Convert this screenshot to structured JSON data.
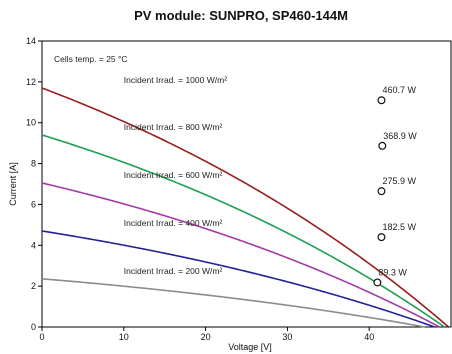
{
  "chart_data": {
    "type": "line",
    "title": "PV module:  SUNPRO,  SP460-144M",
    "xlabel": "Voltage [V]",
    "ylabel": "Current [A]",
    "xlim": [
      0,
      50
    ],
    "ylim": [
      0,
      14
    ],
    "xticks": [
      "0",
      "10",
      "20",
      "30",
      "40"
    ],
    "yticks": [
      "0",
      "2",
      "4",
      "6",
      "8",
      "10",
      "12",
      "14"
    ],
    "grid": false,
    "annotation": "Cells temp. = 25 °C",
    "series": [
      {
        "name": "Incident Irrad. = 1000 W/m²",
        "color": "#9b1c1c",
        "isc": 11.7,
        "voc": 49.7,
        "mpp_v": 41.5,
        "mpp_i": 11.1,
        "mpp_label": "460.7 W"
      },
      {
        "name": "Incident Irrad. = 800 W/m²",
        "color": "#1e9e52",
        "isc": 9.4,
        "voc": 49.2,
        "mpp_v": 41.6,
        "mpp_i": 8.87,
        "mpp_label": "368.9 W"
      },
      {
        "name": "Incident Irrad. = 600 W/m²",
        "color": "#a33aa8",
        "isc": 7.05,
        "voc": 48.6,
        "mpp_v": 41.5,
        "mpp_i": 6.65,
        "mpp_label": "275.9 W"
      },
      {
        "name": "Incident Irrad. = 400 W/m²",
        "color": "#23239a",
        "isc": 4.7,
        "voc": 48.0,
        "mpp_v": 41.5,
        "mpp_i": 4.4,
        "mpp_label": "182.5 W"
      },
      {
        "name": "Incident Irrad. = 200 W/m²",
        "color": "#8c8c8c",
        "isc": 2.36,
        "voc": 46.8,
        "mpp_v": 41.0,
        "mpp_i": 2.18,
        "mpp_label": "89.3 W"
      }
    ]
  }
}
